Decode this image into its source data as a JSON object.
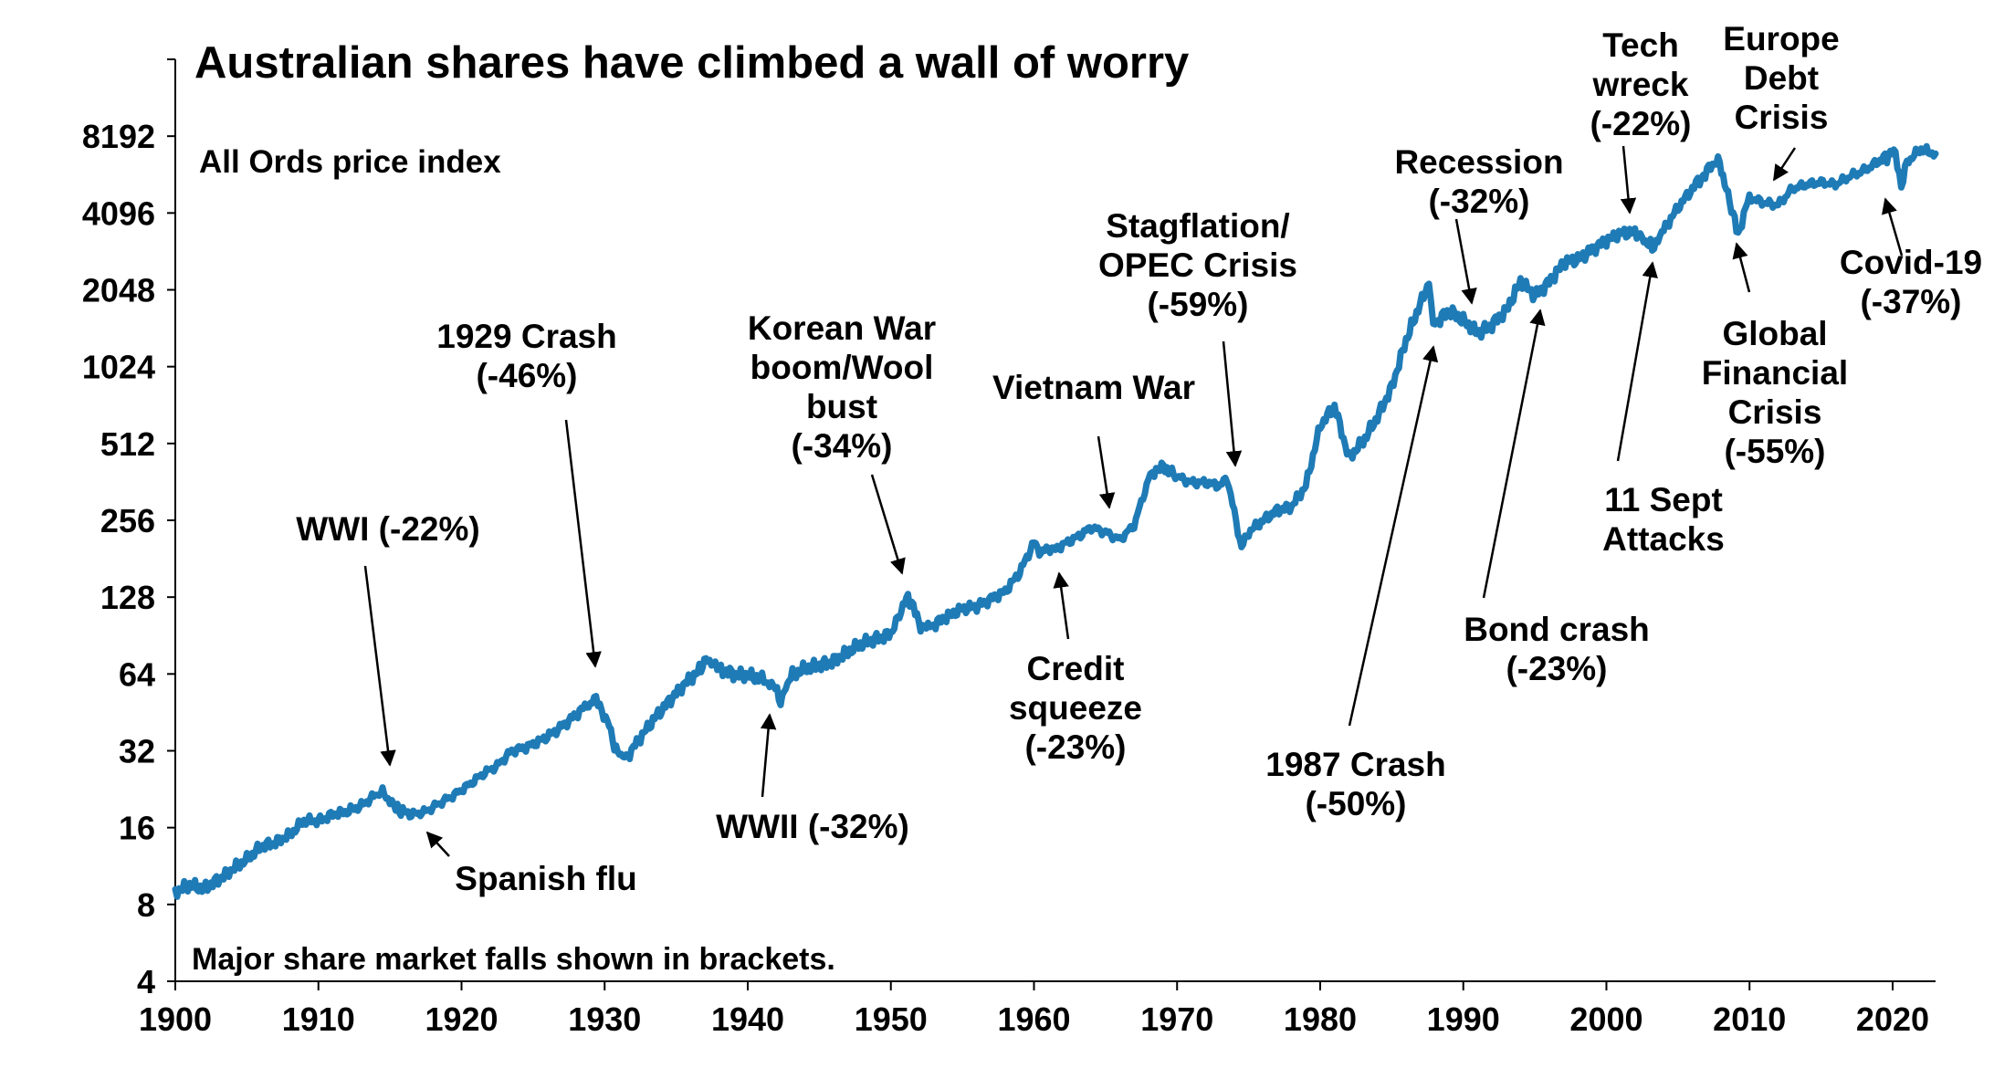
{
  "chart_data": {
    "type": "line",
    "title": "Australian shares have climbed a wall of worry",
    "subtitle": "All Ords price index",
    "note": "Major share market falls shown in brackets.",
    "xlabel": "",
    "ylabel": "",
    "x_scale": "linear",
    "y_scale": "log2",
    "xlim": [
      1900,
      2023
    ],
    "ylim": [
      4,
      16384
    ],
    "x_ticks": [
      "1900",
      "1910",
      "1920",
      "1930",
      "1940",
      "1950",
      "1960",
      "1970",
      "1980",
      "1990",
      "2000",
      "2010",
      "2020"
    ],
    "y_ticks": [
      "4",
      "8",
      "16",
      "32",
      "64",
      "128",
      "256",
      "512",
      "1024",
      "2048",
      "4096",
      "8192"
    ],
    "grid": false,
    "legend": "none",
    "line_color": "#1f7bb6",
    "series": [
      {
        "x": [
          1900,
          1901,
          1902,
          1903,
          1904,
          1905,
          1906,
          1907,
          1908,
          1909,
          1910,
          1911,
          1912,
          1913,
          1914,
          1914.6,
          1915.4,
          1916.5,
          1917.5,
          1918.5,
          1919.5,
          1920.5,
          1921.5,
          1922.5,
          1923.5,
          1924.5,
          1925.5,
          1926.5,
          1927.5,
          1928.5,
          1929.4,
          1930.2,
          1930.8,
          1931.5,
          1932.5,
          1933.5,
          1934.5,
          1935.5,
          1936.5,
          1937.2,
          1938,
          1939,
          1940,
          1941,
          1941.8,
          1942.3,
          1943,
          1944,
          1945,
          1946,
          1947,
          1948,
          1949,
          1950,
          1951.2,
          1952.2,
          1953,
          1954,
          1955,
          1956,
          1957,
          1958,
          1959,
          1960,
          1960.5,
          1961,
          1961.5,
          1962,
          1963,
          1964,
          1965,
          1966,
          1967,
          1968,
          1968.8,
          1970,
          1971,
          1972,
          1973,
          1973.5,
          1974.5,
          1975,
          1976,
          1977,
          1978,
          1979,
          1980,
          1981,
          1982,
          1983,
          1984,
          1985,
          1986,
          1987.6,
          1987.9,
          1988.5,
          1989,
          1990,
          1991,
          1992,
          1993,
          1994,
          1995,
          1996,
          1997,
          1998,
          1999,
          2000,
          2001,
          2002,
          2003.2,
          2004,
          2005,
          2006,
          2007.8,
          2008.5,
          2009.2,
          2010,
          2011,
          2012,
          2013,
          2014,
          2015,
          2016,
          2017,
          2018,
          2019,
          2020.2,
          2020.6,
          2021,
          2022,
          2022.5,
          2023
        ],
        "values": [
          9,
          9.5,
          9.2,
          10,
          11,
          12,
          13.5,
          14,
          15,
          17,
          17,
          18,
          18.5,
          19.5,
          21.5,
          22,
          19,
          18,
          18.5,
          20,
          21.5,
          23.5,
          26,
          28,
          32,
          33,
          35,
          38,
          42,
          47,
          51,
          42,
          32,
          30,
          36,
          43,
          50,
          58,
          65,
          74,
          67,
          64,
          63,
          61,
          58,
          50,
          63,
          67,
          69,
          72,
          78,
          84,
          88,
          92,
          130,
          96,
          100,
          108,
          115,
          118,
          126,
          135,
          160,
          210,
          190,
          200,
          196,
          205,
          220,
          240,
          230,
          215,
          245,
          370,
          420,
          380,
          360,
          360,
          350,
          375,
          200,
          230,
          255,
          280,
          290,
          350,
          600,
          720,
          450,
          520,
          650,
          850,
          1300,
          2200,
          1480,
          1600,
          1700,
          1550,
          1380,
          1500,
          1700,
          2200,
          1950,
          2200,
          2600,
          2700,
          2950,
          3200,
          3400,
          3450,
          3000,
          3500,
          4300,
          5100,
          6700,
          4800,
          3400,
          4700,
          4500,
          4400,
          5100,
          5300,
          5400,
          5300,
          5700,
          6000,
          6500,
          7200,
          5100,
          6500,
          7300,
          7100,
          7000
        ]
      }
    ],
    "annotations": [
      {
        "lines": [
          "WWI (-22%)"
        ],
        "at": [
          1915.3,
          22
        ]
      },
      {
        "lines": [
          "Spanish flu"
        ],
        "at": [
          1917.2,
          18.5
        ]
      },
      {
        "lines": [
          "1929 Crash",
          "(-46%)"
        ],
        "at": [
          1929.3,
          52
        ]
      },
      {
        "lines": [
          "WWII (-32%)"
        ],
        "at": [
          1941.5,
          60
        ]
      },
      {
        "lines": [
          "Korean War",
          "boom/Wool",
          "bust",
          "(-34%)"
        ],
        "at": [
          1951.2,
          132
        ]
      },
      {
        "lines": [
          "Credit",
          "squeeze",
          "(-23%)"
        ],
        "at": [
          1961.8,
          190
        ]
      },
      {
        "lines": [
          "Vietnam War"
        ],
        "at": [
          1966.3,
          250
        ]
      },
      {
        "lines": [
          "Stagflation/",
          "OPEC Crisis",
          "(-59%)"
        ],
        "at": [
          1973.8,
          380
        ]
      },
      {
        "lines": [
          "1987 Crash",
          "(-50%)"
        ],
        "at": [
          1987.9,
          1500
        ]
      },
      {
        "lines": [
          "Recession",
          "(-32%)"
        ],
        "at": [
          1991.0,
          1450
        ]
      },
      {
        "lines": [
          "Bond crash",
          "(-23%)"
        ],
        "at": [
          1994.3,
          1830
        ]
      },
      {
        "lines": [
          "Tech",
          "wreck",
          "(-22%)"
        ],
        "at": [
          2002.3,
          3400
        ]
      },
      {
        "lines": [
          "11 Sept",
          "Attacks"
        ],
        "at": [
          2003.8,
          3000
        ]
      },
      {
        "lines": [
          "Global",
          "Financial",
          "Crisis",
          "(-55%)"
        ],
        "at": [
          2009.0,
          3500
        ]
      },
      {
        "lines": [
          "Europe",
          "Debt",
          "Crisis"
        ],
        "at": [
          2011.4,
          4800
        ]
      },
      {
        "lines": [
          "Covid-19",
          "(-37%)"
        ],
        "at": [
          2020.3,
          5400
        ]
      }
    ]
  }
}
